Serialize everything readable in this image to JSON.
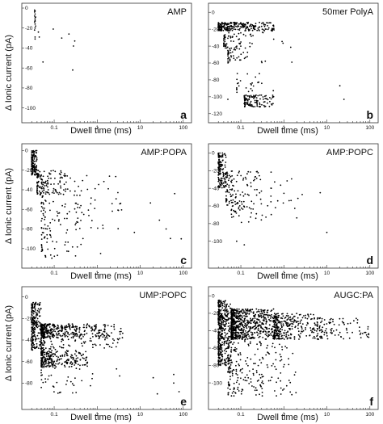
{
  "figure": {
    "y_axis_label": "Δ Ionic current (pA)",
    "x_axis_label": "Dwell time (ms)"
  },
  "chart_data": [
    {
      "type": "scatter",
      "panel": "a",
      "title": "AMP",
      "xlabel": "Dwell time (ms)",
      "ylabel": "Δ Ionic current (pA)",
      "x_scale": "log",
      "xlim": [
        0.025,
        120
      ],
      "ylim": [
        -110,
        0
      ],
      "x_ticks": [
        "0.1",
        "1",
        "10",
        "100"
      ],
      "y_ticks": [
        "0",
        "-20",
        "-40",
        "-60",
        "-80",
        "-100"
      ],
      "x_tick_values": [
        0.1,
        1,
        10,
        100
      ],
      "y_tick_values": [
        0,
        -20,
        -40,
        -60,
        -80,
        -100
      ],
      "points": [
        [
          0.035,
          -2
        ],
        [
          0.035,
          -4
        ],
        [
          0.036,
          -6
        ],
        [
          0.035,
          -8
        ],
        [
          0.036,
          -10
        ],
        [
          0.036,
          -12
        ],
        [
          0.035,
          -14
        ],
        [
          0.036,
          -16
        ],
        [
          0.037,
          -18
        ],
        [
          0.036,
          -20
        ],
        [
          0.035,
          -22
        ],
        [
          0.036,
          -3
        ],
        [
          0.037,
          -9
        ],
        [
          0.036,
          -13
        ],
        [
          0.036,
          -29
        ],
        [
          0.036,
          -31
        ],
        [
          0.043,
          -24
        ],
        [
          0.045,
          -29
        ],
        [
          0.055,
          -54
        ],
        [
          0.095,
          -21
        ],
        [
          0.15,
          -30
        ],
        [
          0.22,
          -26
        ],
        [
          0.27,
          -62
        ],
        [
          0.28,
          -38
        ],
        [
          0.3,
          -33
        ]
      ]
    },
    {
      "type": "scatter",
      "panel": "b",
      "title": "50mer PolyA",
      "xlabel": "Dwell time (ms)",
      "ylabel": "",
      "x_scale": "log",
      "xlim": [
        0.025,
        120
      ],
      "ylim": [
        -125,
        5
      ],
      "x_ticks": [
        "0.1",
        "1",
        "10",
        "100"
      ],
      "y_ticks": [
        "0",
        "-20",
        "-40",
        "-60",
        "-80",
        "-100",
        "-120"
      ],
      "x_tick_values": [
        0.1,
        1,
        10,
        100
      ],
      "y_tick_values": [
        0,
        -20,
        -40,
        -60,
        -80,
        -100,
        -120
      ],
      "clusters": [
        {
          "x": [
            0.03,
            0.6
          ],
          "y": [
            -12,
            -22
          ],
          "n": 260
        },
        {
          "x": [
            0.04,
            0.2
          ],
          "y": [
            -24,
            -45
          ],
          "n": 70
        },
        {
          "x": [
            0.05,
            0.15
          ],
          "y": [
            -45,
            -62
          ],
          "n": 35
        },
        {
          "x": [
            0.08,
            0.6
          ],
          "y": [
            -70,
            -95
          ],
          "n": 25
        },
        {
          "x": [
            0.12,
            0.6
          ],
          "y": [
            -98,
            -112
          ],
          "n": 120
        },
        {
          "x": [
            0.3,
            2.0
          ],
          "y": [
            -20,
            -60
          ],
          "n": 12
        }
      ],
      "points": [
        [
          20,
          -87
        ],
        [
          25,
          -103
        ],
        [
          0.05,
          -103
        ]
      ]
    },
    {
      "type": "scatter",
      "panel": "c",
      "title": "AMP:POPA",
      "xlabel": "Dwell time (ms)",
      "ylabel": "Δ Ionic current (pA)",
      "x_scale": "log",
      "xlim": [
        0.025,
        120
      ],
      "ylim": [
        -115,
        2
      ],
      "x_ticks": [
        "0.1",
        "1",
        "10",
        "100"
      ],
      "y_ticks": [
        "0",
        "-20",
        "-40",
        "-60",
        "-80",
        "-100"
      ],
      "x_tick_values": [
        0.1,
        1,
        10,
        100
      ],
      "y_tick_values": [
        0,
        -20,
        -40,
        -60,
        -80,
        -100
      ],
      "clusters": [
        {
          "x": [
            0.03,
            0.04
          ],
          "y": [
            0,
            -25
          ],
          "n": 140
        },
        {
          "x": [
            0.04,
            0.25
          ],
          "y": [
            -20,
            -45
          ],
          "n": 130
        },
        {
          "x": [
            0.05,
            0.5
          ],
          "y": [
            -40,
            -110
          ],
          "n": 110
        },
        {
          "x": [
            0.3,
            3.0
          ],
          "y": [
            -25,
            -80
          ],
          "n": 40
        },
        {
          "x": [
            3,
            80
          ],
          "y": [
            -25,
            -95
          ],
          "n": 12
        }
      ],
      "points": [
        [
          90,
          -90
        ],
        [
          40,
          -80
        ],
        [
          1.2,
          -105
        ]
      ]
    },
    {
      "type": "scatter",
      "panel": "d",
      "title": "AMP:POPC",
      "xlabel": "Dwell time (ms)",
      "ylabel": "",
      "x_scale": "log",
      "xlim": [
        0.025,
        120
      ],
      "ylim": [
        -125,
        5
      ],
      "x_ticks": [
        "0.1",
        "1",
        "10",
        "100"
      ],
      "y_ticks": [
        "0",
        "-20",
        "-40",
        "-60",
        "-80",
        "-100"
      ],
      "x_tick_values": [
        0.1,
        1,
        10,
        100
      ],
      "y_tick_values": [
        0,
        -20,
        -40,
        -60,
        -80,
        -100
      ],
      "clusters": [
        {
          "x": [
            0.03,
            0.045
          ],
          "y": [
            0,
            -40
          ],
          "n": 130
        },
        {
          "x": [
            0.045,
            0.3
          ],
          "y": [
            -20,
            -60
          ],
          "n": 110
        },
        {
          "x": [
            0.06,
            0.5
          ],
          "y": [
            -55,
            -80
          ],
          "n": 40
        },
        {
          "x": [
            0.5,
            3.0
          ],
          "y": [
            -20,
            -75
          ],
          "n": 20
        }
      ],
      "points": [
        [
          7,
          -45
        ],
        [
          10,
          -90
        ],
        [
          0.08,
          -100
        ],
        [
          0.12,
          -104
        ]
      ]
    },
    {
      "type": "scatter",
      "panel": "e",
      "title": "UMP:POPC",
      "xlabel": "Dwell time (ms)",
      "ylabel": "Δ Ionic current (pA)",
      "x_scale": "log",
      "xlim": [
        0.025,
        120
      ],
      "ylim": [
        -100,
        5
      ],
      "x_ticks": [
        "0.1",
        "1",
        "10",
        "100"
      ],
      "y_ticks": [
        "0",
        "-20",
        "-40",
        "-60",
        "-80"
      ],
      "x_tick_values": [
        0.1,
        1,
        10,
        100
      ],
      "y_tick_values": [
        0,
        -20,
        -40,
        -60,
        -80
      ],
      "clusters": [
        {
          "x": [
            0.03,
            0.05
          ],
          "y": [
            -5,
            -50
          ],
          "n": 220
        },
        {
          "x": [
            0.05,
            1.5
          ],
          "y": [
            -25,
            -38
          ],
          "n": 380
        },
        {
          "x": [
            0.05,
            0.6
          ],
          "y": [
            -50,
            -65
          ],
          "n": 260
        },
        {
          "x": [
            0.05,
            3.0
          ],
          "y": [
            -38,
            -50
          ],
          "n": 80
        },
        {
          "x": [
            0.05,
            4.0
          ],
          "y": [
            -65,
            -90
          ],
          "n": 40
        },
        {
          "x": [
            1.5,
            4.0
          ],
          "y": [
            -25,
            -40
          ],
          "n": 30
        }
      ],
      "points": [
        [
          20,
          -75
        ],
        [
          25,
          -90
        ],
        [
          60,
          -72
        ],
        [
          60,
          -80
        ],
        [
          80,
          -88
        ]
      ]
    },
    {
      "type": "scatter",
      "panel": "f",
      "title": "AUGC:PA",
      "xlabel": "Dwell time (ms)",
      "ylabel": "",
      "x_scale": "log",
      "xlim": [
        0.025,
        120
      ],
      "ylim": [
        -125,
        5
      ],
      "x_ticks": [
        "0.1",
        "1",
        "10",
        "100"
      ],
      "y_ticks": [
        "0",
        "-20",
        "-40",
        "-60",
        "-80",
        "-100"
      ],
      "x_tick_values": [
        0.1,
        1,
        10,
        100
      ],
      "y_tick_values": [
        0,
        -20,
        -40,
        -60,
        -80,
        -100
      ],
      "clusters": [
        {
          "x": [
            0.03,
            0.06
          ],
          "y": [
            -5,
            -80
          ],
          "n": 420
        },
        {
          "x": [
            0.06,
            0.6
          ],
          "y": [
            -15,
            -50
          ],
          "n": 700
        },
        {
          "x": [
            0.6,
            6
          ],
          "y": [
            -20,
            -50
          ],
          "n": 300
        },
        {
          "x": [
            6,
            100
          ],
          "y": [
            -25,
            -50
          ],
          "n": 100
        },
        {
          "x": [
            0.05,
            2
          ],
          "y": [
            -50,
            -115
          ],
          "n": 220
        }
      ],
      "points": [
        [
          80,
          -42
        ],
        [
          90,
          -38
        ]
      ]
    }
  ]
}
